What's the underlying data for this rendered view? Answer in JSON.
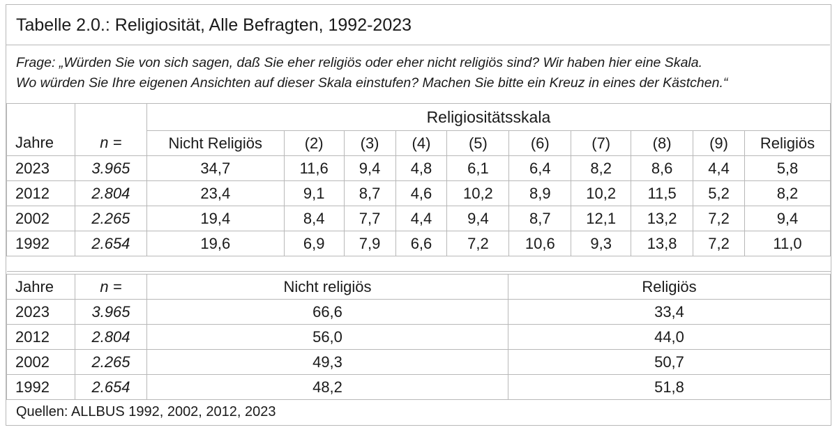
{
  "title": "Tabelle 2.0.: Religiosität, Alle Befragten, 1992-2023",
  "question": {
    "line1": "Frage: „Würden Sie von sich sagen, daß Sie eher religiös oder eher nicht religiös sind? Wir haben hier eine Skala.",
    "line2": "Wo würden Sie Ihre eigenen Ansichten auf dieser Skala einstufen? Machen Sie bitte ein Kreuz in eines der Kästchen.“"
  },
  "scale_table": {
    "group_header": "Religiositätsskala",
    "headers": [
      "Jahre",
      "n =",
      "Nicht Religiös",
      "(2)",
      "(3)",
      "(4)",
      "(5)",
      "(6)",
      "(7)",
      "(8)",
      "(9)",
      "Religiös"
    ],
    "rows": [
      [
        "2023",
        "3.965",
        "34,7",
        "11,6",
        "9,4",
        "4,8",
        "6,1",
        "6,4",
        "8,2",
        "8,6",
        "4,4",
        "5,8"
      ],
      [
        "2012",
        "2.804",
        "23,4",
        "9,1",
        "8,7",
        "4,6",
        "10,2",
        "8,9",
        "10,2",
        "11,5",
        "5,2",
        "8,2"
      ],
      [
        "2002",
        "2.265",
        "19,4",
        "8,4",
        "7,7",
        "4,4",
        "9,4",
        "8,7",
        "12,1",
        "13,2",
        "7,2",
        "9,4"
      ],
      [
        "1992",
        "2.654",
        "19,6",
        "6,9",
        "7,9",
        "6,6",
        "7,2",
        "10,6",
        "9,3",
        "13,8",
        "7,2",
        "11,0"
      ]
    ]
  },
  "summary_table": {
    "headers": [
      "Jahre",
      "n =",
      "Nicht religiös",
      "Religiös"
    ],
    "rows": [
      [
        "2023",
        "3.965",
        "66,6",
        "33,4"
      ],
      [
        "2012",
        "2.804",
        "56,0",
        "44,0"
      ],
      [
        "2002",
        "2.265",
        "49,3",
        "50,7"
      ],
      [
        "1992",
        "2.654",
        "48,2",
        "51,8"
      ]
    ]
  },
  "source": "Quellen: ALLBUS 1992, 2002, 2012, 2023"
}
